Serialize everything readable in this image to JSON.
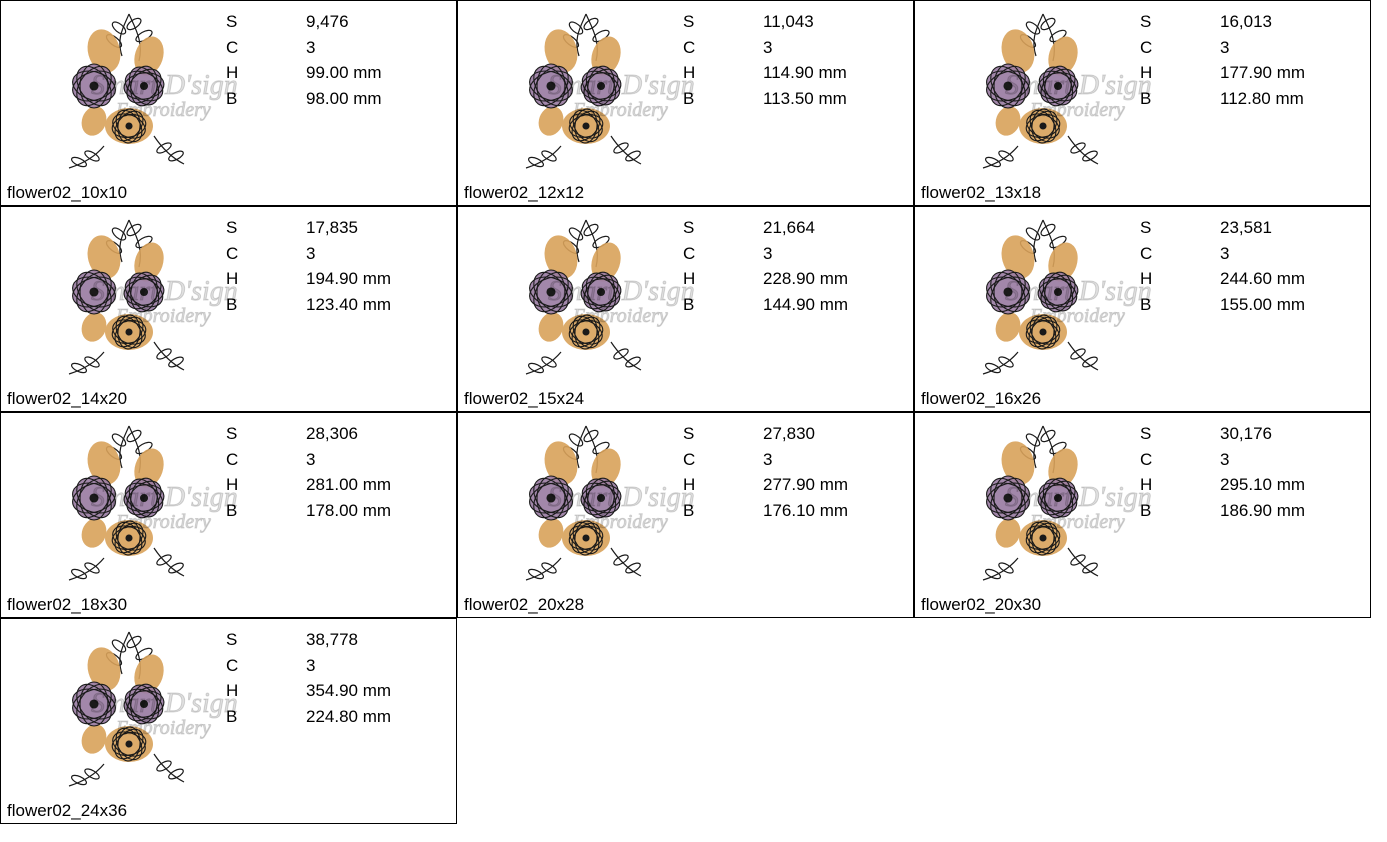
{
  "watermark_line1": "Smart D'sign",
  "watermark_line2": "Embroidery",
  "stat_keys": {
    "S": "S",
    "C": "C",
    "H": "H",
    "B": "B"
  },
  "flower_colors": {
    "purple": "#9b7da3",
    "orange": "#d9a25a",
    "outline": "#1a1a1a"
  },
  "items": [
    {
      "name": "flower02_10x10",
      "S": "9,476",
      "C": "3",
      "H": "99.00 mm",
      "B": "98.00 mm"
    },
    {
      "name": "flower02_12x12",
      "S": "11,043",
      "C": "3",
      "H": "114.90 mm",
      "B": "113.50 mm"
    },
    {
      "name": "flower02_13x18",
      "S": "16,013",
      "C": "3",
      "H": "177.90 mm",
      "B": "112.80 mm"
    },
    {
      "name": "flower02_14x20",
      "S": "17,835",
      "C": "3",
      "H": "194.90 mm",
      "B": "123.40 mm"
    },
    {
      "name": "flower02_15x24",
      "S": "21,664",
      "C": "3",
      "H": "228.90 mm",
      "B": "144.90 mm"
    },
    {
      "name": "flower02_16x26",
      "S": "23,581",
      "C": "3",
      "H": "244.60 mm",
      "B": "155.00 mm"
    },
    {
      "name": "flower02_18x30",
      "S": "28,306",
      "C": "3",
      "H": "281.00 mm",
      "B": "178.00 mm"
    },
    {
      "name": "flower02_20x28",
      "S": "27,830",
      "C": "3",
      "H": "277.90 mm",
      "B": "176.10 mm"
    },
    {
      "name": "flower02_20x30",
      "S": "30,176",
      "C": "3",
      "H": "295.10 mm",
      "B": "186.90 mm"
    },
    {
      "name": "flower02_24x36",
      "S": "38,778",
      "C": "3",
      "H": "354.90 mm",
      "B": "224.80 mm"
    }
  ]
}
